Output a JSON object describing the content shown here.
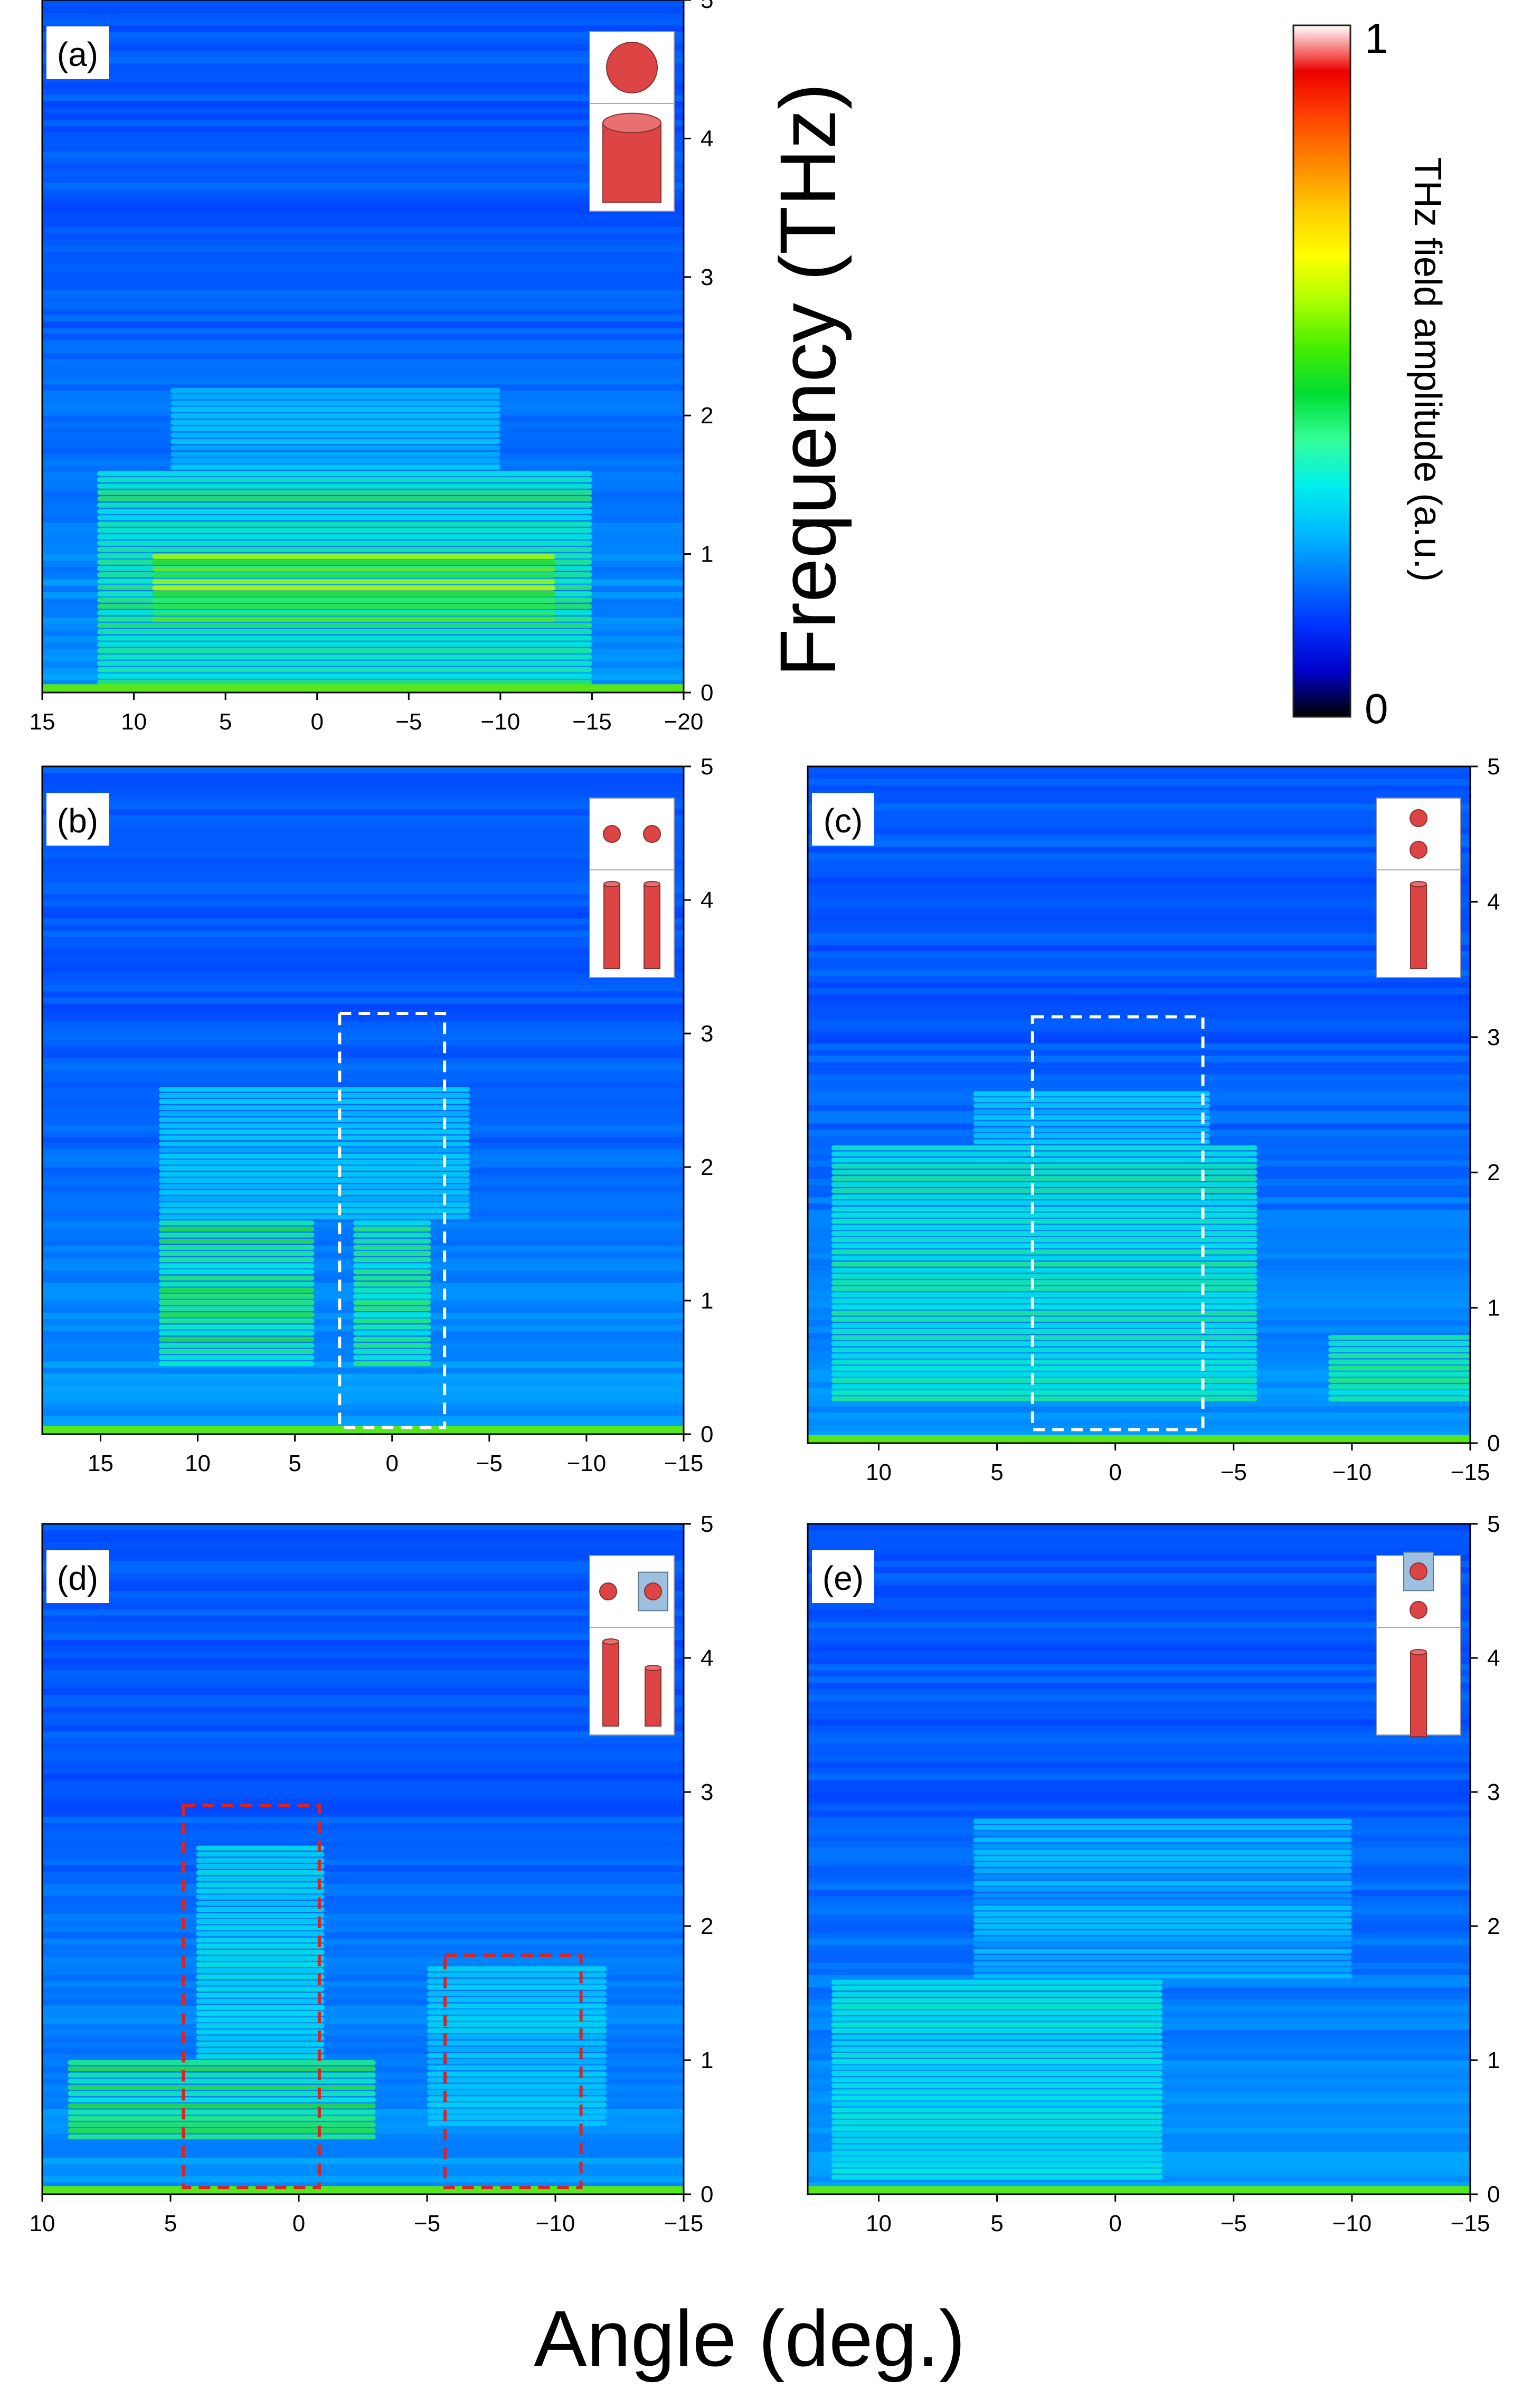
{
  "y_axis_label": "Frequency (THz)",
  "x_axis_label": "Angle (deg.)",
  "colorbar": {
    "label": "THz field amplitude (a.u.)",
    "max_label": "1",
    "min_label": "0",
    "stops": [
      "#000000",
      "#0000cc",
      "#0033ff",
      "#0077ff",
      "#00bbff",
      "#00eeee",
      "#33ff99",
      "#00dd33",
      "#44ee00",
      "#aaff00",
      "#ffff00",
      "#ffcc00",
      "#ff8800",
      "#ff4400",
      "#ee0000",
      "#ffffff"
    ]
  },
  "chart_data": [
    {
      "type": "heatmap",
      "panel_label": "(a)",
      "xlim": [
        15,
        -20
      ],
      "ylim": [
        0,
        5
      ],
      "x_ticks": [
        "15",
        "10",
        "5",
        "0",
        "−5",
        "−10",
        "−15",
        "−20"
      ],
      "y_ticks": [
        "0",
        "1",
        "2",
        "3",
        "4",
        "5"
      ],
      "inset": "single-cylinder",
      "dashed_boxes": [],
      "bright_regions": [
        {
          "x_range": [
            12,
            -15
          ],
          "f_range": [
            0.0,
            1.6
          ],
          "level": 0.6
        },
        {
          "x_range": [
            9,
            -13
          ],
          "f_range": [
            0.5,
            1.0
          ],
          "level": 0.75
        },
        {
          "x_range": [
            8,
            -10
          ],
          "f_range": [
            1.6,
            2.2
          ],
          "level": 0.4
        }
      ]
    },
    {
      "type": "heatmap",
      "panel_label": "(b)",
      "xlim": [
        18,
        -15
      ],
      "ylim": [
        0,
        5
      ],
      "x_ticks": [
        "15",
        "10",
        "5",
        "0",
        "−5",
        "−10",
        "−15"
      ],
      "y_ticks": [
        "0",
        "1",
        "2",
        "3",
        "4",
        "5"
      ],
      "inset": "two-cylinders-side-by-side",
      "dashed_boxes": [
        {
          "x_range": [
            2.7,
            -2.7
          ],
          "f_range": [
            0.05,
            3.15
          ],
          "color": "#ffffff"
        }
      ],
      "bright_regions": [
        {
          "x_range": [
            12,
            4
          ],
          "f_range": [
            0.5,
            1.6
          ],
          "level": 0.65
        },
        {
          "x_range": [
            2,
            -2
          ],
          "f_range": [
            0.5,
            1.6
          ],
          "level": 0.6
        },
        {
          "x_range": [
            12,
            -4
          ],
          "f_range": [
            1.6,
            2.6
          ],
          "level": 0.4
        }
      ]
    },
    {
      "type": "heatmap",
      "panel_label": "(c)",
      "xlim": [
        13,
        -15
      ],
      "ylim": [
        0,
        5
      ],
      "x_ticks": [
        "10",
        "5",
        "0",
        "−5",
        "−10",
        "−15"
      ],
      "y_ticks": [
        "0",
        "1",
        "2",
        "3",
        "4",
        "5"
      ],
      "inset": "two-cylinders-in-line",
      "dashed_boxes": [
        {
          "x_range": [
            3.5,
            -3.7
          ],
          "f_range": [
            0.1,
            3.15
          ],
          "color": "#ffffff"
        }
      ],
      "bright_regions": [
        {
          "x_range": [
            12,
            -6
          ],
          "f_range": [
            0.3,
            2.2
          ],
          "level": 0.55
        },
        {
          "x_range": [
            -9,
            -15
          ],
          "f_range": [
            0.3,
            0.8
          ],
          "level": 0.6
        },
        {
          "x_range": [
            6,
            -4
          ],
          "f_range": [
            2.2,
            2.6
          ],
          "level": 0.4
        }
      ]
    },
    {
      "type": "heatmap",
      "panel_label": "(d)",
      "xlim": [
        10,
        -15
      ],
      "ylim": [
        0,
        5
      ],
      "x_ticks": [
        "10",
        "5",
        "0",
        "−5",
        "−10",
        "−15"
      ],
      "y_ticks": [
        "0",
        "1",
        "2",
        "3",
        "4",
        "5"
      ],
      "inset": "cylinder-and-coated-cylinder-side-by-side",
      "dashed_boxes": [
        {
          "x_range": [
            4.5,
            -0.8
          ],
          "f_range": [
            0.05,
            2.9
          ],
          "color": "#dd2222"
        },
        {
          "x_range": [
            -5.7,
            -11
          ],
          "f_range": [
            0.05,
            1.78
          ],
          "color": "#dd2222"
        }
      ],
      "bright_regions": [
        {
          "x_range": [
            9,
            -3
          ],
          "f_range": [
            0.4,
            1.0
          ],
          "level": 0.65
        },
        {
          "x_range": [
            4,
            -1
          ],
          "f_range": [
            1.0,
            2.6
          ],
          "level": 0.45
        },
        {
          "x_range": [
            -5,
            -12
          ],
          "f_range": [
            0.5,
            1.7
          ],
          "level": 0.4
        }
      ]
    },
    {
      "type": "heatmap",
      "panel_label": "(e)",
      "xlim": [
        13,
        -15
      ],
      "ylim": [
        0,
        5
      ],
      "x_ticks": [
        "10",
        "5",
        "0",
        "−5",
        "−10",
        "−15"
      ],
      "y_ticks": [
        "0",
        "1",
        "2",
        "3",
        "4",
        "5"
      ],
      "inset": "coated-cylinder-and-cylinder-in-line",
      "dashed_boxes": [],
      "bright_regions": [
        {
          "x_range": [
            12,
            -2
          ],
          "f_range": [
            0.1,
            1.6
          ],
          "level": 0.5
        },
        {
          "x_range": [
            6,
            -10
          ],
          "f_range": [
            1.6,
            2.8
          ],
          "level": 0.35
        }
      ]
    }
  ]
}
